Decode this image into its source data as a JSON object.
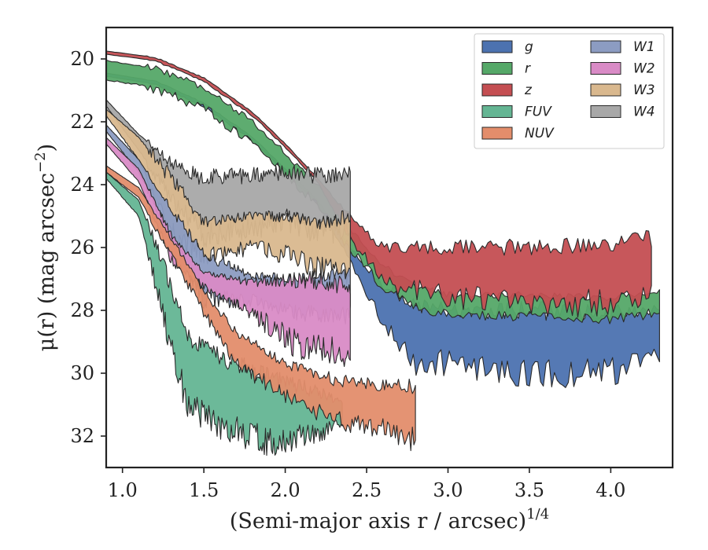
{
  "chart_data": {
    "type": "area",
    "title": "",
    "xlabel": "(Semi-major axis r / arcsec)",
    "xlabel_sup": "1/4",
    "ylabel": "μ(r) (mag arcsec",
    "ylabel_sup": "−2",
    "ylabel_close": ")",
    "xlim": [
      0.9,
      4.38
    ],
    "ylim": [
      33.0,
      19.0
    ],
    "y_inverted": true,
    "grid": false,
    "legend_position": "top-right",
    "legend_columns": 2,
    "xticks": [
      1.0,
      1.5,
      2.0,
      2.5,
      3.0,
      3.5,
      4.0
    ],
    "xtick_labels": [
      "1.0",
      "1.5",
      "2.0",
      "2.5",
      "3.0",
      "3.5",
      "4.0"
    ],
    "yticks": [
      20,
      22,
      24,
      26,
      28,
      30,
      32
    ],
    "ytick_labels": [
      "20",
      "22",
      "24",
      "26",
      "28",
      "30",
      "32"
    ],
    "series": [
      {
        "name": "g",
        "color": "#4c72b0",
        "noise": "noise",
        "upper": [
          [
            0.9,
            20.45
          ],
          [
            1.2,
            20.7
          ],
          [
            1.5,
            21.4
          ],
          [
            1.8,
            22.5
          ],
          [
            2.0,
            23.5
          ],
          [
            2.2,
            24.5
          ],
          [
            2.4,
            26.0
          ],
          [
            2.6,
            27.2
          ],
          [
            2.8,
            27.8
          ],
          [
            3.0,
            28.0
          ],
          [
            3.5,
            28.0
          ],
          [
            4.0,
            28.1
          ],
          [
            4.3,
            28.0
          ]
        ],
        "lower": [
          [
            0.9,
            20.55
          ],
          [
            1.2,
            20.8
          ],
          [
            1.5,
            21.5
          ],
          [
            1.8,
            22.6
          ],
          [
            2.0,
            23.6
          ],
          [
            2.2,
            24.6
          ],
          [
            2.4,
            26.4
          ],
          [
            2.6,
            28.2
          ],
          [
            2.8,
            29.5
          ],
          [
            3.0,
            29.5
          ],
          [
            3.5,
            29.8
          ],
          [
            4.0,
            29.8
          ],
          [
            4.3,
            29.2
          ]
        ]
      },
      {
        "name": "r",
        "color": "#55a868",
        "noise": "noise",
        "upper": [
          [
            0.9,
            20.05
          ],
          [
            1.2,
            20.3
          ],
          [
            1.5,
            20.9
          ],
          [
            1.8,
            22.0
          ],
          [
            2.0,
            23.0
          ],
          [
            2.2,
            24.0
          ],
          [
            2.4,
            25.4
          ],
          [
            2.6,
            26.6
          ],
          [
            2.8,
            27.2
          ],
          [
            3.0,
            27.5
          ],
          [
            3.5,
            27.5
          ],
          [
            4.0,
            27.6
          ],
          [
            4.3,
            27.4
          ]
        ]
      },
      {
        "name": "z",
        "color": "#c44e52",
        "noise": "noise",
        "upper": [
          [
            0.9,
            19.75
          ],
          [
            1.2,
            19.95
          ],
          [
            1.5,
            20.6
          ],
          [
            1.8,
            21.7
          ],
          [
            2.0,
            22.7
          ],
          [
            2.2,
            23.8
          ],
          [
            2.4,
            25.0
          ],
          [
            2.6,
            26.0
          ],
          [
            3.0,
            26.0
          ],
          [
            3.5,
            26.0
          ],
          [
            4.0,
            25.9
          ],
          [
            4.25,
            25.7
          ]
        ],
        "lower": [
          [
            0.9,
            19.85
          ],
          [
            1.2,
            20.05
          ],
          [
            1.5,
            20.7
          ],
          [
            1.8,
            21.8
          ],
          [
            2.0,
            22.8
          ],
          [
            2.2,
            23.9
          ],
          [
            2.4,
            25.6
          ],
          [
            2.6,
            27.0
          ],
          [
            3.0,
            27.4
          ],
          [
            3.5,
            27.6
          ],
          [
            4.0,
            27.6
          ],
          [
            4.25,
            27.3
          ]
        ]
      },
      {
        "name": "FUV",
        "color": "#64b593",
        "noise": "noise",
        "upper": [
          [
            0.9,
            23.6
          ],
          [
            1.1,
            24.5
          ],
          [
            1.25,
            26.5
          ],
          [
            1.4,
            28.8
          ],
          [
            1.6,
            29.5
          ],
          [
            1.9,
            30.1
          ],
          [
            2.2,
            30.6
          ],
          [
            2.35,
            30.9
          ]
        ],
        "lower": [
          [
            0.9,
            23.8
          ],
          [
            1.1,
            25.0
          ],
          [
            1.25,
            28.0
          ],
          [
            1.4,
            30.8
          ],
          [
            1.6,
            31.5
          ],
          [
            1.9,
            32.0
          ],
          [
            2.2,
            31.8
          ],
          [
            2.35,
            31.5
          ]
        ]
      },
      {
        "name": "NUV",
        "color": "#e38d6b",
        "noise": "noise",
        "upper": [
          [
            0.9,
            23.4
          ],
          [
            1.1,
            24.1
          ],
          [
            1.3,
            25.7
          ],
          [
            1.5,
            27.4
          ],
          [
            1.7,
            28.7
          ],
          [
            2.0,
            29.7
          ],
          [
            2.3,
            30.2
          ],
          [
            2.6,
            30.4
          ],
          [
            2.8,
            30.4
          ]
        ],
        "lower": [
          [
            0.9,
            23.6
          ],
          [
            1.1,
            24.4
          ],
          [
            1.3,
            26.2
          ],
          [
            1.5,
            28.0
          ],
          [
            1.7,
            29.6
          ],
          [
            2.0,
            30.6
          ],
          [
            2.3,
            31.4
          ],
          [
            2.6,
            31.6
          ],
          [
            2.8,
            32.0
          ]
        ]
      },
      {
        "name": "W1",
        "color": "#8c9cc2",
        "noise": "noise",
        "upper": [
          [
            0.9,
            22.1
          ],
          [
            1.1,
            23.2
          ],
          [
            1.3,
            24.8
          ],
          [
            1.5,
            26.2
          ],
          [
            1.8,
            26.9
          ],
          [
            2.1,
            27.0
          ],
          [
            2.4,
            26.8
          ]
        ],
        "lower": [
          [
            0.9,
            22.3
          ],
          [
            1.1,
            23.6
          ],
          [
            1.3,
            25.6
          ],
          [
            1.5,
            27.5
          ],
          [
            1.8,
            27.6
          ],
          [
            2.1,
            28.0
          ],
          [
            2.4,
            28.0
          ]
        ]
      },
      {
        "name": "W2",
        "color": "#d98bc6",
        "noise": "noise",
        "upper": [
          [
            0.9,
            22.5
          ],
          [
            1.1,
            23.5
          ],
          [
            1.3,
            25.6
          ],
          [
            1.5,
            26.8
          ],
          [
            1.8,
            27.1
          ],
          [
            2.1,
            27.0
          ],
          [
            2.4,
            27.2
          ]
        ],
        "lower": [
          [
            0.9,
            22.7
          ],
          [
            1.1,
            23.9
          ],
          [
            1.3,
            26.3
          ],
          [
            1.5,
            27.2
          ],
          [
            1.8,
            28.0
          ],
          [
            2.1,
            29.0
          ],
          [
            2.4,
            29.2
          ]
        ]
      },
      {
        "name": "W3",
        "color": "#d9b88e",
        "noise": "noise",
        "upper": [
          [
            0.9,
            21.6
          ],
          [
            1.1,
            22.5
          ],
          [
            1.3,
            23.8
          ],
          [
            1.5,
            25.2
          ],
          [
            1.8,
            25.0
          ],
          [
            2.0,
            25.0
          ],
          [
            2.2,
            25.2
          ],
          [
            2.4,
            25.0
          ]
        ],
        "lower": [
          [
            0.9,
            21.8
          ],
          [
            1.1,
            23.2
          ],
          [
            1.3,
            25.4
          ],
          [
            1.5,
            26.2
          ],
          [
            1.8,
            25.9
          ],
          [
            2.0,
            26.1
          ],
          [
            2.2,
            26.5
          ],
          [
            2.4,
            26.6
          ]
        ]
      },
      {
        "name": "W4",
        "color": "#a8a8a8",
        "noise": "noise",
        "upper": [
          [
            0.9,
            21.3
          ],
          [
            1.1,
            22.4
          ],
          [
            1.3,
            23.3
          ],
          [
            1.5,
            23.8
          ],
          [
            1.8,
            23.7
          ],
          [
            2.0,
            23.6
          ],
          [
            2.2,
            23.7
          ],
          [
            2.4,
            23.6
          ]
        ],
        "lower": [
          [
            0.9,
            21.5
          ],
          [
            1.1,
            22.9
          ],
          [
            1.3,
            24.3
          ],
          [
            1.5,
            25.5
          ],
          [
            1.8,
            25.2
          ],
          [
            2.0,
            25.0
          ],
          [
            2.2,
            25.3
          ],
          [
            2.4,
            25.2
          ]
        ]
      }
    ]
  }
}
